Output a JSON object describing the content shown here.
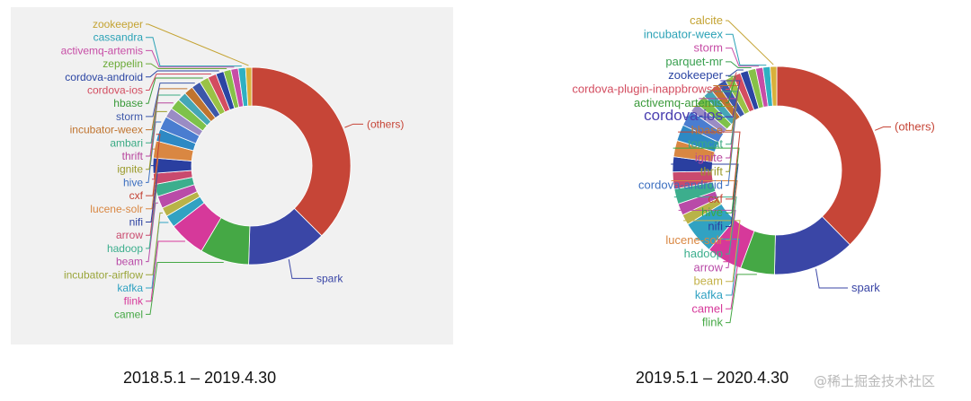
{
  "captions": {
    "left": "2018.5.1 – 2019.4.30",
    "right": "2019.5.1 – 2020.4.30"
  },
  "watermark": "@稀土掘金技术社区",
  "chart_data": [
    {
      "type": "pie",
      "title": "2018.5.1 – 2019.4.30",
      "donut": true,
      "categories": [
        "(others)",
        "spark",
        "camel",
        "flink",
        "kafka",
        "incubator-airflow",
        "beam",
        "hadoop",
        "arrow",
        "nifi",
        "lucene-solr",
        "cxf",
        "hive",
        "ignite",
        "thrift",
        "ambari",
        "incubator-weex",
        "storm",
        "hbase",
        "cordova-ios",
        "cordova-android",
        "zeppelin",
        "activemq-artemis",
        "cassandra",
        "zookeeper"
      ],
      "values": [
        37.5,
        13,
        8,
        6,
        2,
        1.5,
        2,
        2,
        1.8,
        2.5,
        2.8,
        2,
        2.2,
        1.6,
        1.8,
        1.5,
        1.5,
        1.5,
        1.5,
        1.4,
        1.3,
        1.2,
        1.2,
        1.2,
        1.0
      ],
      "colors": [
        "#c64537",
        "#3a46a6",
        "#45a845",
        "#d6399a",
        "#31a2c2",
        "#b8b348",
        "#b94ba8",
        "#3cae8d",
        "#c94a6e",
        "#2a3fa0",
        "#d98742",
        "#2e89c4",
        "#4a7dd0",
        "#9a8cc4",
        "#7ec24a",
        "#45a6b6",
        "#c0742f",
        "#3d57a9",
        "#9ac246",
        "#d34d60",
        "#2b45a3",
        "#86c148",
        "#c74da6",
        "#2fb0c2",
        "#d8b13b"
      ],
      "label_colors": [
        "#c64537",
        "#3a46a6",
        "#45a845",
        "#d6399a",
        "#31a2c2",
        "#9aa53a",
        "#b94ba8",
        "#3cae8d",
        "#c94a6e",
        "#2a3fa0",
        "#d98742",
        "#c44336",
        "#3c6fc0",
        "#9a9a2a",
        "#b8469e",
        "#3aaa84",
        "#c0742f",
        "#3d57a9",
        "#3a9a3a",
        "#d34d60",
        "#2b45a3",
        "#6aaa36",
        "#c74da6",
        "#2ba2b6",
        "#c4a332"
      ]
    },
    {
      "type": "pie",
      "title": "2019.5.1 – 2020.4.30",
      "donut": true,
      "categories": [
        "(others)",
        "spark",
        "flink",
        "camel",
        "kafka",
        "beam",
        "arrow",
        "hadoop",
        "lucene-solr",
        "nifi",
        "hive",
        "cxf",
        "cordova-android",
        "thrift",
        "ignite",
        "tomcat",
        "hbase",
        "cordova-ios",
        "activemq-artemis",
        "cordova-plugin-inappbrowser",
        "zookeeper",
        "parquet-mr",
        "storm",
        "incubator-weex",
        "calcite"
      ],
      "values": [
        37,
        12.5,
        5.2,
        5.5,
        5,
        1.6,
        1.8,
        2.3,
        2.6,
        2.3,
        2.5,
        2.5,
        2.4,
        1.4,
        1.6,
        1.4,
        1.3,
        1.3,
        1.3,
        1.2,
        1.2,
        1.2,
        1.1,
        1.1,
        1.0
      ],
      "colors": [
        "#c64537",
        "#3a46a6",
        "#45a845",
        "#d6399a",
        "#31a2c2",
        "#b8b348",
        "#b94ba8",
        "#3cae8d",
        "#c94a6e",
        "#2a3fa0",
        "#d98742",
        "#2e89c4",
        "#4a7dd0",
        "#9a8cc4",
        "#7ec24a",
        "#45a6b6",
        "#c0742f",
        "#3d57a9",
        "#9ac246",
        "#d34d60",
        "#2b45a3",
        "#86c148",
        "#c74da6",
        "#2fb0c2",
        "#d8b13b"
      ],
      "label_colors": [
        "#c64537",
        "#3a46a6",
        "#45a845",
        "#d6399a",
        "#31a2c2",
        "#c4b24a",
        "#b94ba8",
        "#3cae8d",
        "#d98742",
        "#2a3fa0",
        "#3aaa40",
        "#c44336",
        "#3c6fc0",
        "#9a9a2a",
        "#b8469e",
        "#3aaa84",
        "#c0742f",
        "#4a3fb0",
        "#3a9a3a",
        "#d34d60",
        "#2b45a3",
        "#3aa050",
        "#c74da6",
        "#2ba2b6",
        "#c4a332"
      ]
    }
  ]
}
